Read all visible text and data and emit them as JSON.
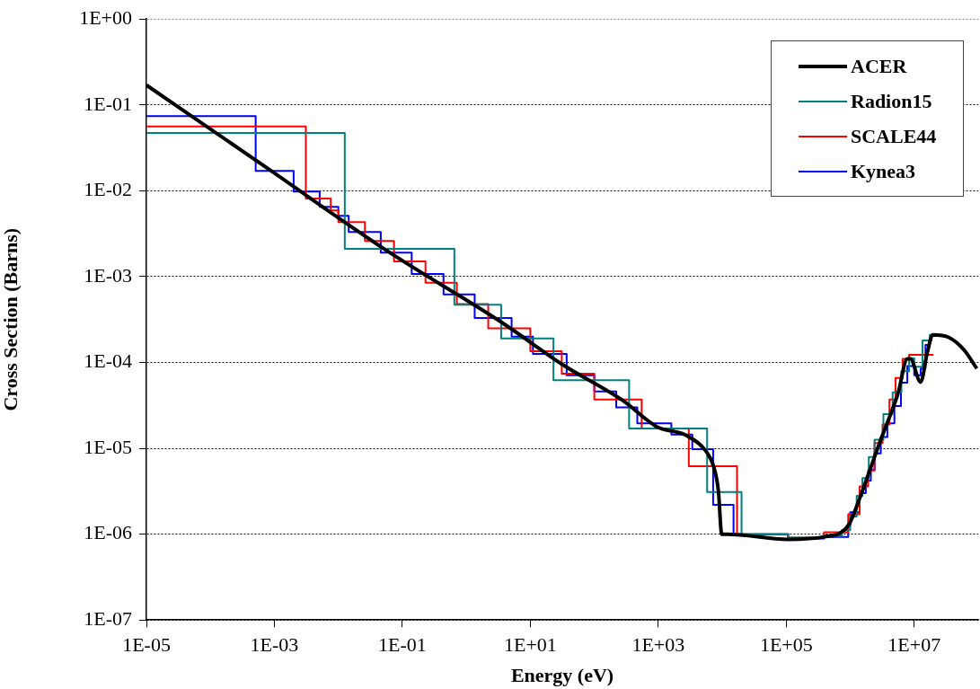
{
  "chart_data": {
    "type": "line",
    "xlabel": "Energy (eV)",
    "ylabel": "Cross Section (Barns)",
    "log": "xy",
    "grid": "y",
    "legend": "top right",
    "marker": "none",
    "xlim": [
      1e-05,
      100000000.0
    ],
    "xticks": [
      {
        "value": 1e-05,
        "label": "1E-05"
      },
      {
        "value": 0.001,
        "label": "1E-03"
      },
      {
        "value": 0.1,
        "label": "1E-01"
      },
      {
        "value": 10,
        "label": "1E+01"
      },
      {
        "value": 1000,
        "label": "1E+03"
      },
      {
        "value": 100000.0,
        "label": "1E+05"
      },
      {
        "value": 10000000.0,
        "label": "1E+07"
      }
    ],
    "ylim": [
      1e-07,
      1
    ],
    "yticks": [
      {
        "value": 1e-07,
        "label": "1E-07"
      },
      {
        "value": 1e-06,
        "label": "1E-06"
      },
      {
        "value": 1e-05,
        "label": "1E-05"
      },
      {
        "value": 0.0001,
        "label": "1E-04"
      },
      {
        "value": 0.001,
        "label": "1E-03"
      },
      {
        "value": 0.01,
        "label": "1E-02"
      },
      {
        "value": 0.1,
        "label": "1E-01"
      },
      {
        "value": 1,
        "label": "1E+00"
      }
    ],
    "series": [
      {
        "name": "ACER",
        "type": "line",
        "color": "#000000",
        "x": [
          1e-05,
          0.00072,
          0.052,
          3.9,
          33,
          280,
          930,
          2800.0,
          5400.0,
          7400.0,
          8700.0,
          9800.0,
          12000.0,
          107000.0,
          390000.0,
          930000.0,
          1400000.0,
          2100000.0,
          3000000.0,
          4100000.0,
          5600000.0,
          7800000.0,
          8700000.0,
          12600000.0,
          16000000.0,
          19500000.0,
          35000000.0,
          60000000.0,
          95000000.0
        ],
        "values": [
          0.17,
          0.019,
          0.0021,
          0.00028,
          9.3e-05,
          3.6e-05,
          1.8e-05,
          1.4e-05,
          9.5e-06,
          6e-06,
          3.2e-06,
          1e-06,
          1e-06,
          8.7e-07,
          9.3e-07,
          1.26e-06,
          2.6e-06,
          6e-06,
          1.26e-05,
          2.3e-05,
          4.4e-05,
          0.00011,
          0.00011,
          5.9e-05,
          0.00013,
          0.00021,
          0.000195,
          0.00014,
          8.5e-05
        ]
      },
      {
        "name": "Radion15",
        "type": "step",
        "color": "#008080",
        "x": [
          1e-05,
          0.0126,
          0.65,
          3.5,
          23,
          350,
          5800.0,
          20000.0,
          107000.0,
          390000.0,
          740000.0,
          1000000.0,
          1260000.0,
          1550000.0,
          1950000.0,
          2400000.0,
          3300000.0,
          4600000.0,
          6300000.0,
          8300000.0,
          10000000.0,
          13500000.0,
          17500000.0,
          22000000.0
        ],
        "values": [
          0.047,
          0.0021,
          0.00047,
          0.00019,
          6.2e-05,
          1.7e-05,
          3.1e-06,
          1e-06,
          9.1e-07,
          9.5e-07,
          1.12e-06,
          1.6e-06,
          2.8e-06,
          4.5e-06,
          7.9e-06,
          1.26e-05,
          2.5e-05,
          4.5e-05,
          7.9e-05,
          0.000112,
          8.9e-05,
          0.00018,
          0.00021,
          0.00021
        ]
      },
      {
        "name": "SCALE44",
        "type": "step",
        "color": "#ff0000",
        "x": [
          1e-05,
          0.0031,
          0.0076,
          0.01,
          0.026,
          0.074,
          0.23,
          0.71,
          2.2,
          10,
          31,
          100,
          550,
          3000.0,
          17000.0,
          107000.0,
          390000.0,
          930000.0,
          1400000.0,
          1900000.0,
          2400000.0,
          3200000.0,
          4100000.0,
          5100000.0,
          6600000.0,
          8300000.0,
          20000000.0
        ],
        "values": [
          0.056,
          0.0081,
          0.0059,
          0.0043,
          0.0026,
          0.0015,
          0.00085,
          0.00048,
          0.00025,
          0.000135,
          7.4e-05,
          3.7e-05,
          1.7e-05,
          6.2e-06,
          1e-06,
          9.1e-07,
          1.05e-06,
          1.7e-06,
          3.6e-06,
          5.5e-06,
          1.15e-05,
          1.9e-05,
          3.7e-05,
          6.6e-05,
          0.00011,
          0.000123,
          0.000123
        ]
      },
      {
        "name": "Kynea3",
        "type": "step",
        "color": "#0000ff",
        "x": [
          1e-05,
          0.00051,
          0.002,
          0.0051,
          0.01,
          0.0145,
          0.046,
          0.14,
          0.44,
          1.35,
          5.1,
          11,
          37,
          100,
          220,
          470,
          1600.0,
          3400.0,
          7200.0,
          15000.0,
          107000.0,
          390000.0,
          930000.0,
          1000000.0,
          1400000.0,
          1750000.0,
          2100000.0,
          2400000.0,
          3000000.0,
          3800000.0,
          4900000.0,
          6200000.0,
          7800000.0,
          10000000.0,
          12600000.0,
          15000000.0,
          17500000.0,
          19000000.0
        ],
        "values": [
          0.074,
          0.017,
          0.0098,
          0.0065,
          0.0051,
          0.0033,
          0.0019,
          0.00107,
          0.00062,
          0.00033,
          0.0002,
          0.000126,
          7.1e-05,
          4.6e-05,
          3e-05,
          1.95e-05,
          1.45e-05,
          9.8e-06,
          2.2e-06,
          1e-06,
          8.9e-07,
          9.3e-07,
          1.26e-06,
          1.8e-06,
          3e-06,
          4.2e-06,
          5.6e-06,
          8.7e-06,
          1.35e-05,
          1.95e-05,
          3.1e-05,
          5.8e-05,
          9.1e-05,
          7.1e-05,
          8.5e-05,
          0.00016,
          0.00018,
          0.00018
        ]
      }
    ]
  }
}
